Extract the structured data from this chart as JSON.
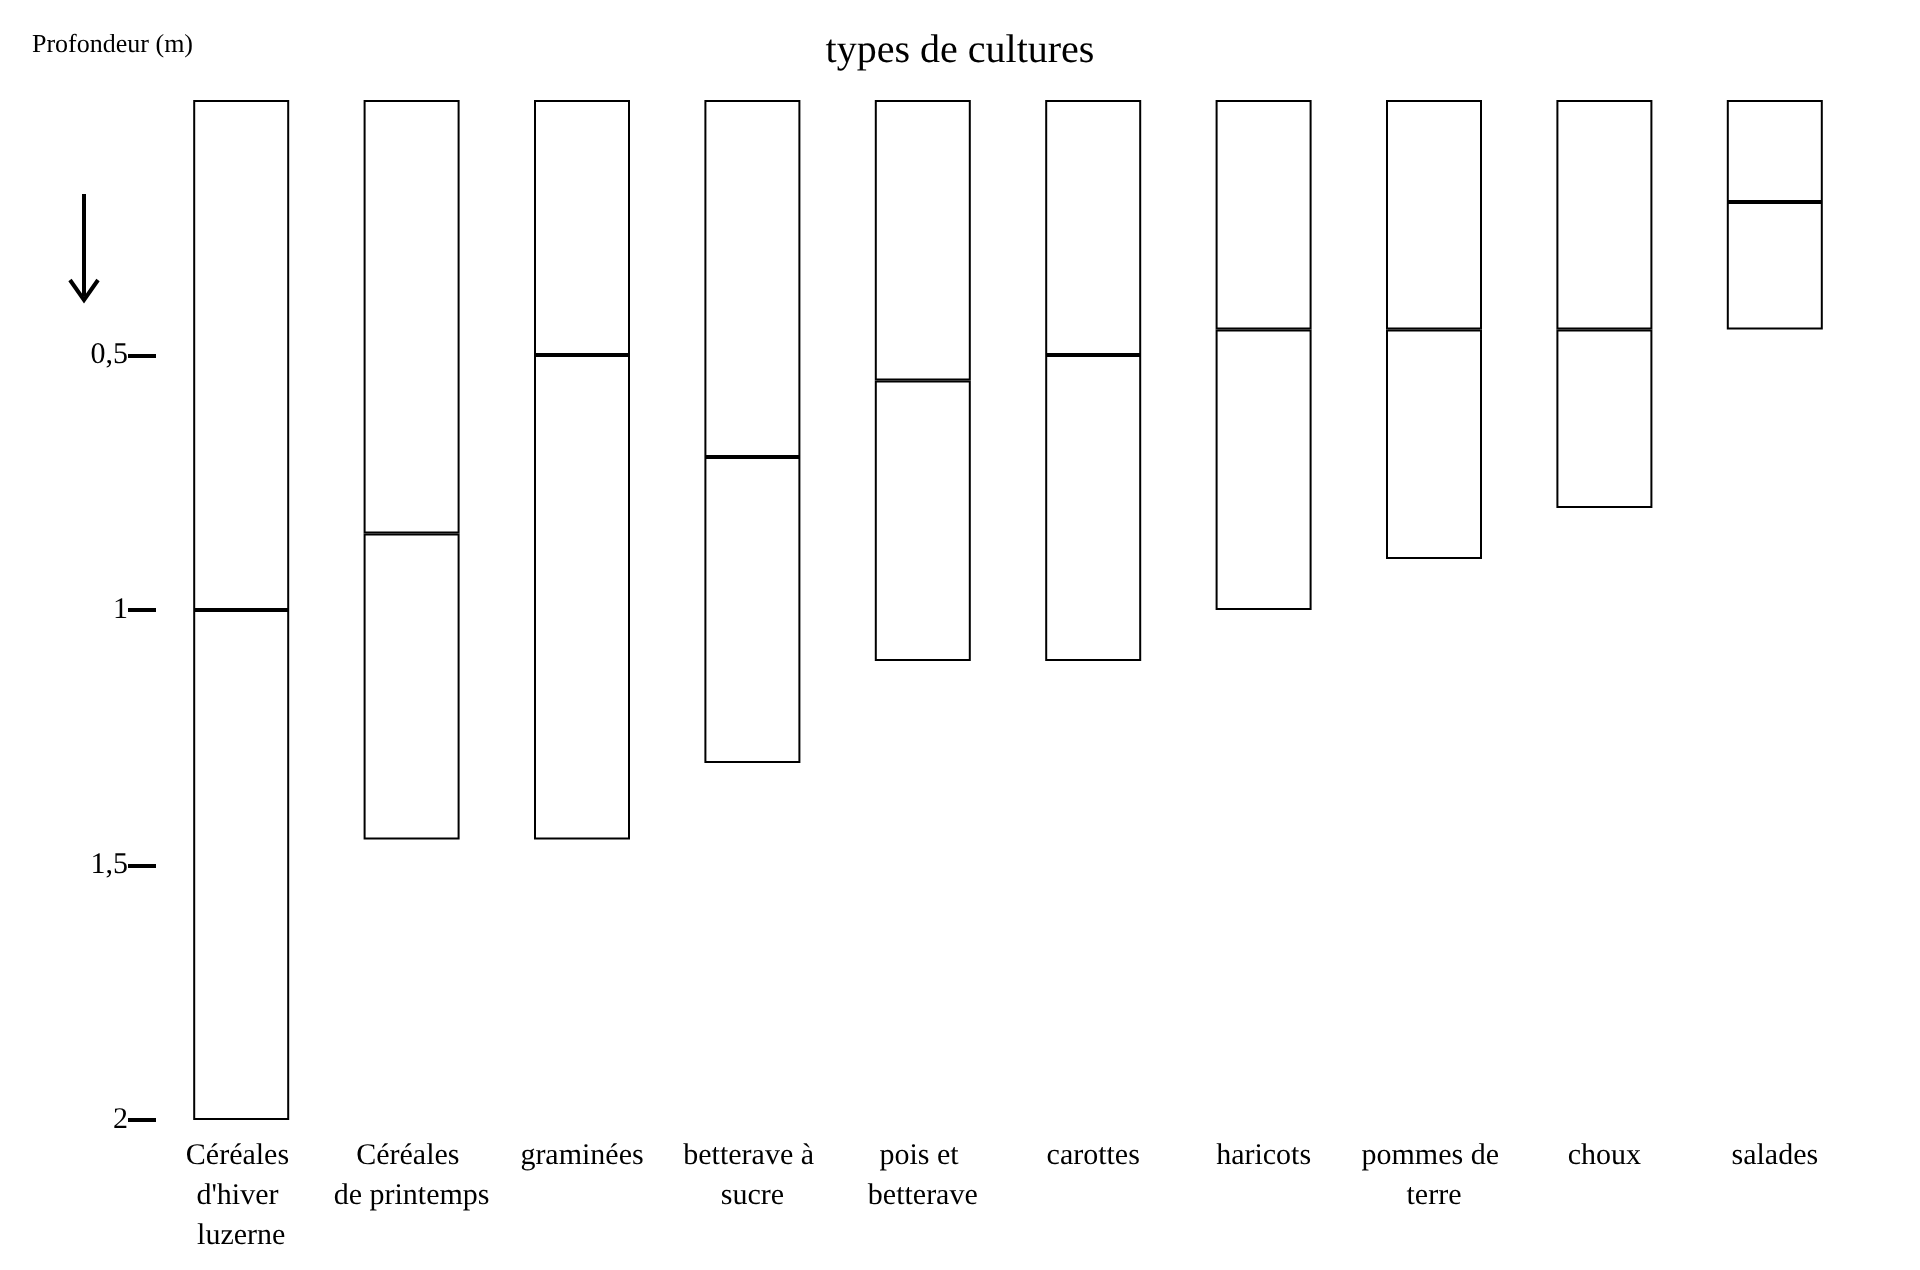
{
  "chart_data": {
    "type": "bar",
    "title": "types de cultures",
    "ylabel": "Profondeur (m)",
    "categories": [
      "Céréales d'hiver luzerne",
      "Céréales de printemps",
      "graminées",
      "betterave à sucre",
      "pois et betterave",
      "carottes",
      "haricots",
      "pommes de terre",
      "choux",
      "salades"
    ],
    "stacked": true,
    "series": [
      {
        "color": "#ffffff",
        "values": [
          1.0,
          0.85,
          0.5,
          0.7,
          0.55,
          0.5,
          0.45,
          0.45,
          0.45,
          0.2
        ]
      },
      {
        "color": "#ffffff",
        "values": [
          1.0,
          0.6,
          0.95,
          0.6,
          0.55,
          0.6,
          0.55,
          0.45,
          0.35,
          0.25
        ]
      }
    ],
    "ylim": [
      2,
      0
    ],
    "yticks": [
      {
        "value": 0.5,
        "label": "0,5"
      },
      1,
      {
        "value": 1.5,
        "label": "1,5"
      },
      2
    ],
    "grid": false
  }
}
